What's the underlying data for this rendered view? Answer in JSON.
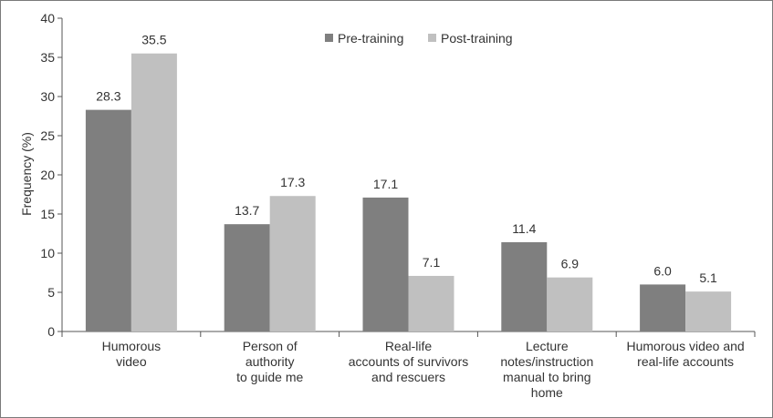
{
  "chart_data": {
    "type": "bar",
    "title": "",
    "xlabel": "",
    "ylabel": "Frequency  (%)",
    "ylim": [
      0,
      40
    ],
    "yticks": [
      0,
      5,
      10,
      15,
      20,
      25,
      30,
      35,
      40
    ],
    "grid": false,
    "legend_position": "top-center",
    "categories": [
      [
        "Humorous",
        "video"
      ],
      [
        "Person of",
        "authority",
        "to guide me"
      ],
      [
        "Real-life",
        "accounts of survivors",
        "and rescuers"
      ],
      [
        "Lecture",
        "notes/instruction",
        "manual to bring",
        "home"
      ],
      [
        "Humorous video and",
        "real-life accounts"
      ]
    ],
    "series": [
      {
        "name": "Pre-training",
        "color": "#7f7f7f",
        "values": [
          28.3,
          13.7,
          17.1,
          11.4,
          6.0
        ],
        "labels": [
          "28.3",
          "13.7",
          "17.1",
          "11.4",
          "6.0"
        ]
      },
      {
        "name": "Post-training",
        "color": "#c0c0c0",
        "values": [
          35.5,
          17.3,
          7.1,
          6.9,
          5.1
        ],
        "labels": [
          "35.5",
          "17.3",
          "7.1",
          "6.9",
          "5.1"
        ]
      }
    ]
  }
}
